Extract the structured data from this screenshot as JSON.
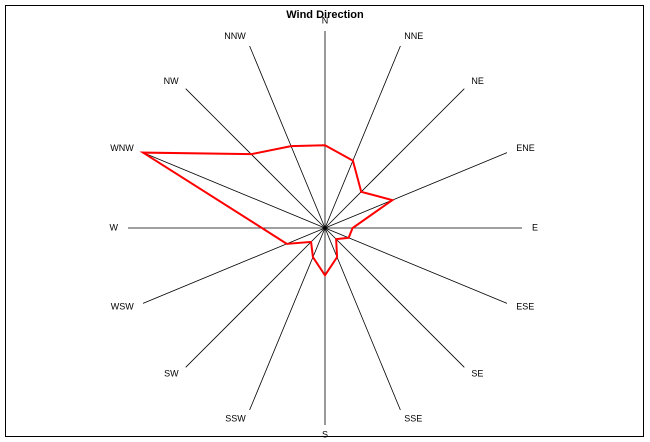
{
  "chart_data": {
    "type": "radar",
    "title": "Wind Direction",
    "categories": [
      "N",
      "NNE",
      "NE",
      "ENE",
      "E",
      "ESE",
      "SE",
      "SSE",
      "S",
      "SSW",
      "SW",
      "WSW",
      "W",
      "WNW",
      "NW",
      "NNW"
    ],
    "series": [
      {
        "color": "#ff0000",
        "values": [
          42,
          37,
          26,
          37,
          14,
          13,
          8,
          16,
          24,
          16,
          10,
          21,
          32,
          100,
          53,
          45
        ]
      }
    ],
    "rlim": [
      0,
      100
    ]
  }
}
